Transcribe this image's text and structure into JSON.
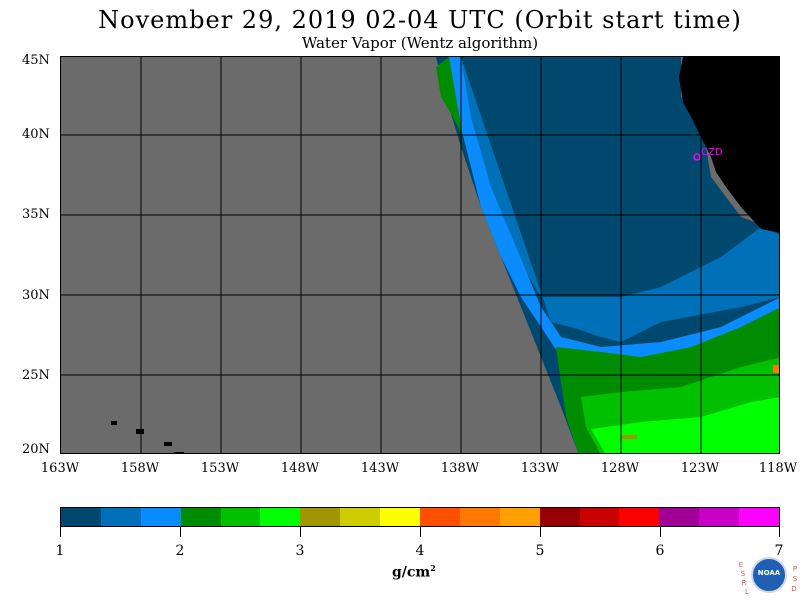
{
  "header": {
    "title": "November 29, 2019  02-04 UTC  (Orbit start time)",
    "subtitle": "Water Vapor (Wentz algorithm)"
  },
  "map": {
    "lat_labels": [
      "45N",
      "40N",
      "35N",
      "30N",
      "25N",
      "20N"
    ],
    "lon_labels": [
      "163W",
      "158W",
      "153W",
      "148W",
      "143W",
      "138W",
      "133W",
      "128W",
      "123W",
      "118W"
    ],
    "lat_range": [
      20,
      45
    ],
    "lon_range": [
      -163,
      -118
    ],
    "station_label": "CZD",
    "colors": {
      "no_data": "#6b6b6b",
      "land": "#000000",
      "grid": "#000000",
      "station": "#ff00ff"
    }
  },
  "colorbar": {
    "labels": [
      "1",
      "2",
      "3",
      "4",
      "5",
      "6",
      "7"
    ],
    "range": [
      1,
      7
    ],
    "units_text": "g/cm",
    "units_sup": "2",
    "colors": [
      "#00486e",
      "#0070b8",
      "#0a8cff",
      "#008c00",
      "#00c000",
      "#00ff00",
      "#a09600",
      "#cdcd00",
      "#ffff00",
      "#ff5000",
      "#ff7800",
      "#ffa000",
      "#960000",
      "#c80000",
      "#ff0000",
      "#a00096",
      "#c800c8",
      "#ff00ff"
    ]
  },
  "logo": {
    "left_letters": [
      "E",
      "S",
      "R",
      "L"
    ],
    "right_letters": [
      "P",
      "S",
      "D"
    ],
    "emblem": "NOAA"
  }
}
